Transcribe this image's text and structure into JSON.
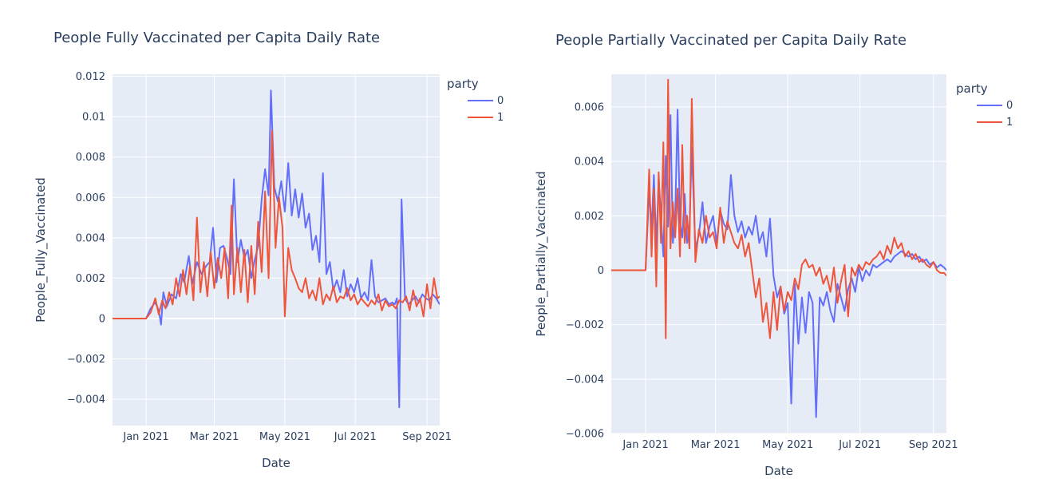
{
  "colors": {
    "plot_bg": "#e5ecf6",
    "grid": "#ffffff",
    "series_0": "#636efa",
    "series_1": "#ef553b",
    "text": "#2a3f5f"
  },
  "chart_data": [
    {
      "type": "line",
      "title": "People Fully Vaccinated per Capita Daily Rate",
      "xlabel": "Date",
      "ylabel": "People_Fully_Vaccinated",
      "xlim": [
        "2020-12-03",
        "2021-09-12"
      ],
      "ylim": [
        -0.0053,
        0.0121
      ],
      "x_ticks": [
        "2021-01-01",
        "2021-03-01",
        "2021-05-01",
        "2021-07-01",
        "2021-09-01"
      ],
      "x_tick_labels": [
        "Jan 2021",
        "Mar 2021",
        "May 2021",
        "Jul 2021",
        "Sep 2021"
      ],
      "y_ticks": [
        -0.004,
        -0.002,
        0,
        0.002,
        0.004,
        0.006,
        0.008,
        0.01,
        0.012
      ],
      "y_tick_labels": [
        "−0.004",
        "−0.002",
        "0",
        "0.002",
        "0.004",
        "0.006",
        "0.008",
        "0.01",
        "0.012"
      ],
      "legend": {
        "title": "party",
        "placement": "top-right"
      },
      "grid": true,
      "series": [
        {
          "name": "0",
          "x": [
            "2020-12-03",
            "2020-12-10",
            "2020-12-20",
            "2020-12-28",
            "2021-01-01",
            "2021-01-05",
            "2021-01-09",
            "2021-01-12",
            "2021-01-14",
            "2021-01-16",
            "2021-01-19",
            "2021-01-23",
            "2021-01-27",
            "2021-01-31",
            "2021-02-03",
            "2021-02-07",
            "2021-02-10",
            "2021-02-14",
            "2021-02-18",
            "2021-02-22",
            "2021-02-25",
            "2021-02-28",
            "2021-03-03",
            "2021-03-06",
            "2021-03-09",
            "2021-03-12",
            "2021-03-15",
            "2021-03-18",
            "2021-03-21",
            "2021-03-24",
            "2021-03-27",
            "2021-03-30",
            "2021-04-02",
            "2021-04-05",
            "2021-04-08",
            "2021-04-11",
            "2021-04-14",
            "2021-04-17",
            "2021-04-19",
            "2021-04-22",
            "2021-04-25",
            "2021-04-28",
            "2021-05-01",
            "2021-05-04",
            "2021-05-07",
            "2021-05-10",
            "2021-05-13",
            "2021-05-16",
            "2021-05-19",
            "2021-05-22",
            "2021-05-25",
            "2021-05-28",
            "2021-05-31",
            "2021-06-03",
            "2021-06-06",
            "2021-06-09",
            "2021-06-12",
            "2021-06-15",
            "2021-06-18",
            "2021-06-21",
            "2021-06-24",
            "2021-06-27",
            "2021-06-30",
            "2021-07-03",
            "2021-07-06",
            "2021-07-09",
            "2021-07-12",
            "2021-07-15",
            "2021-07-18",
            "2021-07-21",
            "2021-07-24",
            "2021-07-27",
            "2021-07-30",
            "2021-08-02",
            "2021-08-04",
            "2021-08-06",
            "2021-08-08",
            "2021-08-10",
            "2021-08-13",
            "2021-08-16",
            "2021-08-19",
            "2021-08-22",
            "2021-08-25",
            "2021-08-28",
            "2021-08-31",
            "2021-09-03",
            "2021-09-06",
            "2021-09-09",
            "2021-09-12"
          ],
          "values": [
            0,
            0,
            0,
            0,
            0,
            0.0005,
            0.0008,
            0.0004,
            -0.0003,
            0.0013,
            0.0006,
            0.0012,
            0.001,
            0.0022,
            0.0018,
            0.0031,
            0.0017,
            0.0028,
            0.0022,
            0.0026,
            0.0028,
            0.0045,
            0.0018,
            0.0035,
            0.0036,
            0.003,
            0.0022,
            0.0069,
            0.0028,
            0.0039,
            0.003,
            0.0034,
            0.002,
            0.0029,
            0.0036,
            0.0059,
            0.0074,
            0.0061,
            0.0113,
            0.0065,
            0.0058,
            0.0068,
            0.0053,
            0.0077,
            0.0051,
            0.0064,
            0.005,
            0.0062,
            0.0045,
            0.0052,
            0.0034,
            0.0041,
            0.0028,
            0.0072,
            0.0022,
            0.0028,
            0.0014,
            0.0019,
            0.0013,
            0.0024,
            0.0011,
            0.0017,
            0.0013,
            0.002,
            0.001,
            0.0013,
            0.0009,
            0.0029,
            0.0011,
            0.0008,
            0.0009,
            0.001,
            0.0007,
            0.0008,
            0.0007,
            0.001,
            -0.0044,
            0.0059,
            0.001,
            0.0007,
            0.0009,
            0.0011,
            0.0008,
            0.0012,
            0.001,
            0.0009,
            0.0012,
            0.001,
            0.0007
          ]
        },
        {
          "name": "1",
          "x": [
            "2020-12-03",
            "2020-12-10",
            "2020-12-20",
            "2020-12-28",
            "2021-01-01",
            "2021-01-05",
            "2021-01-09",
            "2021-01-12",
            "2021-01-15",
            "2021-01-18",
            "2021-01-21",
            "2021-01-24",
            "2021-01-27",
            "2021-01-30",
            "2021-02-02",
            "2021-02-05",
            "2021-02-08",
            "2021-02-11",
            "2021-02-14",
            "2021-02-17",
            "2021-02-20",
            "2021-02-23",
            "2021-02-26",
            "2021-03-01",
            "2021-03-04",
            "2021-03-07",
            "2021-03-10",
            "2021-03-13",
            "2021-03-16",
            "2021-03-18",
            "2021-03-21",
            "2021-03-24",
            "2021-03-27",
            "2021-03-30",
            "2021-04-02",
            "2021-04-05",
            "2021-04-08",
            "2021-04-11",
            "2021-04-14",
            "2021-04-17",
            "2021-04-20",
            "2021-04-23",
            "2021-04-26",
            "2021-04-29",
            "2021-05-01",
            "2021-05-04",
            "2021-05-07",
            "2021-05-10",
            "2021-05-13",
            "2021-05-16",
            "2021-05-19",
            "2021-05-22",
            "2021-05-25",
            "2021-05-28",
            "2021-05-31",
            "2021-06-03",
            "2021-06-06",
            "2021-06-09",
            "2021-06-12",
            "2021-06-15",
            "2021-06-18",
            "2021-06-21",
            "2021-06-24",
            "2021-06-27",
            "2021-06-30",
            "2021-07-03",
            "2021-07-06",
            "2021-07-09",
            "2021-07-12",
            "2021-07-15",
            "2021-07-18",
            "2021-07-21",
            "2021-07-24",
            "2021-07-27",
            "2021-07-30",
            "2021-08-02",
            "2021-08-05",
            "2021-08-08",
            "2021-08-11",
            "2021-08-14",
            "2021-08-17",
            "2021-08-20",
            "2021-08-23",
            "2021-08-26",
            "2021-08-29",
            "2021-09-01",
            "2021-09-04",
            "2021-09-07",
            "2021-09-10",
            "2021-09-12"
          ],
          "values": [
            0,
            0,
            0,
            0,
            0,
            0.0003,
            0.001,
            0.0002,
            0.0009,
            0.0005,
            0.0013,
            0.0007,
            0.002,
            0.0011,
            0.0024,
            0.0012,
            0.0026,
            0.0009,
            0.005,
            0.0013,
            0.0028,
            0.0011,
            0.0033,
            0.0015,
            0.003,
            0.002,
            0.0035,
            0.001,
            0.0056,
            0.0012,
            0.0035,
            0.0013,
            0.0034,
            0.0008,
            0.0036,
            0.0012,
            0.0048,
            0.0023,
            0.0063,
            0.002,
            0.0093,
            0.0035,
            0.006,
            0.0045,
            0.0001,
            0.0035,
            0.0024,
            0.002,
            0.0015,
            0.0013,
            0.002,
            0.001,
            0.0014,
            0.0009,
            0.002,
            0.0007,
            0.0012,
            0.0009,
            0.0016,
            0.0008,
            0.0011,
            0.001,
            0.0015,
            0.0009,
            0.0012,
            0.0007,
            0.001,
            0.0008,
            0.0006,
            0.0009,
            0.0007,
            0.0012,
            0.0004,
            0.0009,
            0.0006,
            0.0007,
            0.0005,
            0.0009,
            0.0008,
            0.0011,
            0.0004,
            0.0014,
            0.0006,
            0.001,
            0.0001,
            0.0017,
            0.0005,
            0.002,
            0.001,
            0.0011
          ]
        }
      ]
    },
    {
      "type": "line",
      "title": "People Partially Vaccinated per Capita Daily Rate",
      "xlabel": "Date",
      "ylabel": "People_Partially_Vaccinated",
      "xlim": [
        "2020-12-03",
        "2021-09-12"
      ],
      "ylim": [
        -0.006,
        0.0072
      ],
      "x_ticks": [
        "2021-01-01",
        "2021-03-01",
        "2021-05-01",
        "2021-07-01",
        "2021-09-01"
      ],
      "x_tick_labels": [
        "Jan 2021",
        "Mar 2021",
        "May 2021",
        "Jul 2021",
        "Sep 2021"
      ],
      "y_ticks": [
        -0.006,
        -0.004,
        -0.002,
        0,
        0.002,
        0.004,
        0.006
      ],
      "y_tick_labels": [
        "−0.006",
        "−0.004",
        "−0.002",
        "0",
        "0.002",
        "0.004",
        "0.006"
      ],
      "legend": {
        "title": "party",
        "placement": "top-right"
      },
      "grid": true,
      "series": [
        {
          "name": "0",
          "x": [
            "2020-12-03",
            "2020-12-12",
            "2020-12-22",
            "2020-12-30",
            "2021-01-01",
            "2021-01-04",
            "2021-01-06",
            "2021-01-08",
            "2021-01-10",
            "2021-01-12",
            "2021-01-14",
            "2021-01-16",
            "2021-01-18",
            "2021-01-20",
            "2021-01-22",
            "2021-01-24",
            "2021-01-26",
            "2021-01-28",
            "2021-01-30",
            "2021-02-01",
            "2021-02-03",
            "2021-02-05",
            "2021-02-07",
            "2021-02-09",
            "2021-02-12",
            "2021-02-15",
            "2021-02-18",
            "2021-02-21",
            "2021-02-24",
            "2021-02-27",
            "2021-03-02",
            "2021-03-05",
            "2021-03-08",
            "2021-03-11",
            "2021-03-14",
            "2021-03-17",
            "2021-03-20",
            "2021-03-23",
            "2021-03-26",
            "2021-03-29",
            "2021-04-01",
            "2021-04-04",
            "2021-04-07",
            "2021-04-10",
            "2021-04-13",
            "2021-04-16",
            "2021-04-19",
            "2021-04-22",
            "2021-04-25",
            "2021-04-28",
            "2021-05-01",
            "2021-05-04",
            "2021-05-07",
            "2021-05-10",
            "2021-05-13",
            "2021-05-16",
            "2021-05-19",
            "2021-05-22",
            "2021-05-25",
            "2021-05-28",
            "2021-05-31",
            "2021-06-03",
            "2021-06-06",
            "2021-06-09",
            "2021-06-12",
            "2021-06-15",
            "2021-06-18",
            "2021-06-21",
            "2021-06-24",
            "2021-06-27",
            "2021-06-30",
            "2021-07-03",
            "2021-07-06",
            "2021-07-09",
            "2021-07-12",
            "2021-07-15",
            "2021-07-18",
            "2021-07-21",
            "2021-07-24",
            "2021-07-27",
            "2021-07-30",
            "2021-08-02",
            "2021-08-05",
            "2021-08-08",
            "2021-08-11",
            "2021-08-14",
            "2021-08-17",
            "2021-08-20",
            "2021-08-23",
            "2021-08-26",
            "2021-08-29",
            "2021-09-01",
            "2021-09-04",
            "2021-09-07",
            "2021-09-10",
            "2021-09-12"
          ],
          "values": [
            0,
            0,
            0,
            0,
            0,
            0.003,
            0.0015,
            0.0035,
            0.0008,
            0.0034,
            0.002,
            0.0005,
            0.0042,
            0.0016,
            0.0057,
            0.001,
            0.002,
            0.0059,
            0.0018,
            0.0012,
            0.0028,
            0.001,
            0.0015,
            0.0045,
            0.0008,
            0.0013,
            0.0025,
            0.001,
            0.0016,
            0.002,
            0.001,
            0.0022,
            0.0017,
            0.0015,
            0.0035,
            0.002,
            0.0014,
            0.0018,
            0.0012,
            0.0016,
            0.0013,
            0.002,
            0.001,
            0.0014,
            0.0005,
            0.0019,
            -0.0002,
            -0.001,
            -0.0006,
            -0.0016,
            -0.0012,
            -0.0049,
            -0.0005,
            -0.0027,
            -0.001,
            -0.0023,
            -0.0008,
            -0.0012,
            -0.0054,
            -0.001,
            -0.0013,
            -0.0008,
            -0.0015,
            -0.0019,
            -0.0005,
            -0.001,
            -0.0015,
            -0.0007,
            -0.0003,
            -0.0008,
            0.0001,
            -0.0004,
            0.0,
            -0.0002,
            0.0002,
            0.0001,
            0.0002,
            0.0003,
            0.0004,
            0.0003,
            0.0005,
            0.0006,
            0.0007,
            0.0006,
            0.0005,
            0.0006,
            0.0004,
            0.0005,
            0.0003,
            0.0004,
            0.0002,
            0.0003,
            0.0001,
            0.0002,
            0.0001,
            0.0
          ]
        },
        {
          "name": "1",
          "x": [
            "2020-12-03",
            "2020-12-12",
            "2020-12-22",
            "2020-12-30",
            "2021-01-01",
            "2021-01-04",
            "2021-01-06",
            "2021-01-08",
            "2021-01-10",
            "2021-01-12",
            "2021-01-14",
            "2021-01-16",
            "2021-01-18",
            "2021-01-20",
            "2021-01-22",
            "2021-01-24",
            "2021-01-26",
            "2021-01-28",
            "2021-01-30",
            "2021-02-01",
            "2021-02-03",
            "2021-02-05",
            "2021-02-07",
            "2021-02-09",
            "2021-02-12",
            "2021-02-15",
            "2021-02-18",
            "2021-02-21",
            "2021-02-24",
            "2021-02-27",
            "2021-03-02",
            "2021-03-05",
            "2021-03-08",
            "2021-03-11",
            "2021-03-14",
            "2021-03-17",
            "2021-03-20",
            "2021-03-23",
            "2021-03-26",
            "2021-03-29",
            "2021-04-01",
            "2021-04-04",
            "2021-04-07",
            "2021-04-10",
            "2021-04-13",
            "2021-04-16",
            "2021-04-19",
            "2021-04-22",
            "2021-04-25",
            "2021-04-28",
            "2021-05-01",
            "2021-05-04",
            "2021-05-07",
            "2021-05-10",
            "2021-05-13",
            "2021-05-16",
            "2021-05-19",
            "2021-05-22",
            "2021-05-25",
            "2021-05-28",
            "2021-05-31",
            "2021-06-03",
            "2021-06-06",
            "2021-06-09",
            "2021-06-12",
            "2021-06-15",
            "2021-06-18",
            "2021-06-21",
            "2021-06-24",
            "2021-06-27",
            "2021-06-30",
            "2021-07-03",
            "2021-07-06",
            "2021-07-09",
            "2021-07-12",
            "2021-07-15",
            "2021-07-18",
            "2021-07-21",
            "2021-07-24",
            "2021-07-27",
            "2021-07-30",
            "2021-08-02",
            "2021-08-05",
            "2021-08-08",
            "2021-08-11",
            "2021-08-14",
            "2021-08-17",
            "2021-08-20",
            "2021-08-23",
            "2021-08-26",
            "2021-08-29",
            "2021-09-01",
            "2021-09-04",
            "2021-09-07",
            "2021-09-10",
            "2021-09-12"
          ],
          "values": [
            0,
            0,
            0,
            0,
            0,
            0.0037,
            0.0005,
            0.003,
            -0.0006,
            0.0036,
            0.001,
            0.0047,
            -0.0025,
            0.007,
            0.0008,
            0.0025,
            0.0012,
            0.003,
            0.0005,
            0.0046,
            0.001,
            0.002,
            0.0008,
            0.0063,
            0.0003,
            0.0015,
            0.001,
            0.002,
            0.0012,
            0.0014,
            0.0008,
            0.0023,
            0.001,
            0.0018,
            0.0014,
            0.001,
            0.0008,
            0.0013,
            0.0005,
            0.001,
            0.0,
            -0.001,
            -0.0003,
            -0.0019,
            -0.0012,
            -0.0025,
            -0.0008,
            -0.0022,
            -0.0006,
            -0.0015,
            -0.0008,
            -0.0011,
            -0.0003,
            -0.0007,
            0.0002,
            0.0004,
            0.0001,
            0.0002,
            -0.0002,
            0.0001,
            -0.0005,
            -0.0002,
            -0.0008,
            0.0001,
            -0.0012,
            -0.0004,
            0.0002,
            -0.0017,
            0.0001,
            -0.0002,
            0.0002,
            0.0,
            0.0003,
            0.0002,
            0.0004,
            0.0005,
            0.0007,
            0.0004,
            0.0009,
            0.0006,
            0.0012,
            0.0008,
            0.001,
            0.0005,
            0.0007,
            0.0004,
            0.0006,
            0.0003,
            0.0004,
            0.0002,
            0.0001,
            0.0003,
            0.0,
            -0.0001,
            -0.0001,
            -0.0002
          ]
        }
      ]
    }
  ]
}
